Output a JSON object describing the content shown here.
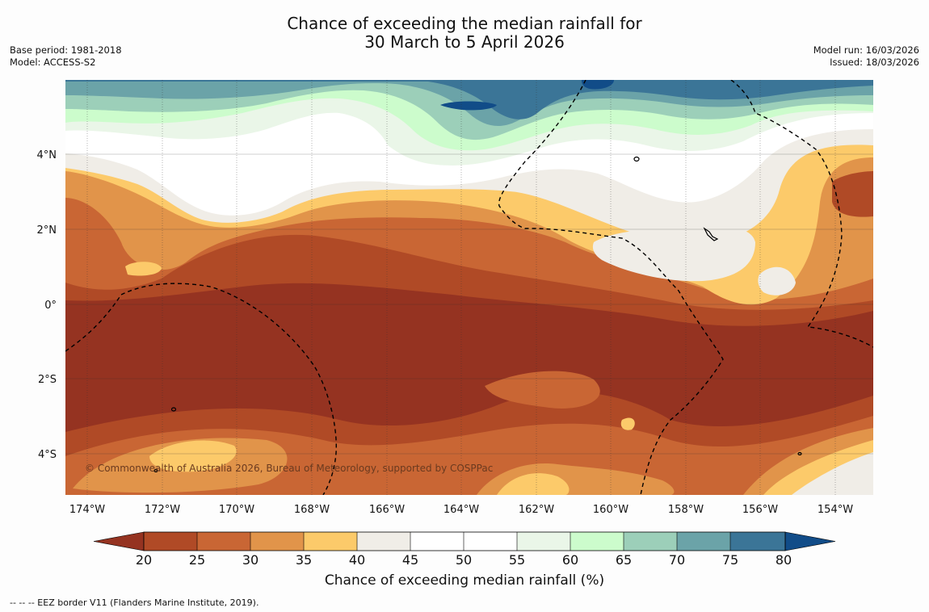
{
  "header": {
    "title_line1": "Chance of exceeding the median rainfall for",
    "title_line2": "30 March to 5 April 2026",
    "base_period": "Base period: 1981-2018",
    "model": "Model: ACCESS-S2",
    "model_run": "Model run: 16/03/2026",
    "issued": "Issued: 18/03/2026"
  },
  "map": {
    "lat_labels": [
      "4°N",
      "2°N",
      "0°",
      "2°S",
      "4°S"
    ],
    "lon_labels": [
      "174°W",
      "172°W",
      "170°W",
      "168°W",
      "166°W",
      "164°W",
      "162°W",
      "160°W",
      "158°W",
      "156°W",
      "154°W"
    ],
    "copyright": "© Commonwealth of Australia 2026, Bureau of Meteorology, supported by COSPPac"
  },
  "colorbar": {
    "ticks": [
      "20",
      "25",
      "30",
      "35",
      "40",
      "45",
      "50",
      "55",
      "60",
      "65",
      "70",
      "75",
      "80"
    ],
    "colors": {
      "under": "#953321",
      "c20_25": "#b04a26",
      "c25_30": "#c96634",
      "c30_35": "#e1944a",
      "c35_40": "#fcca6a",
      "c40_45": "#f0ede7",
      "c45_50": "#ffffff",
      "c50_55": "#ffffff",
      "c55_60": "#eaf6e8",
      "c60_65": "#ccfccc",
      "c65_70": "#9ccfb9",
      "c70_75": "#6ba3a8",
      "c75_80": "#3b7597",
      "over": "#114c88"
    },
    "label": "Chance of exceeding median rainfall (%)"
  },
  "footer": {
    "eez": "--  --  -- EEZ border V11 (Flanders Marine Institute, 2019)."
  }
}
